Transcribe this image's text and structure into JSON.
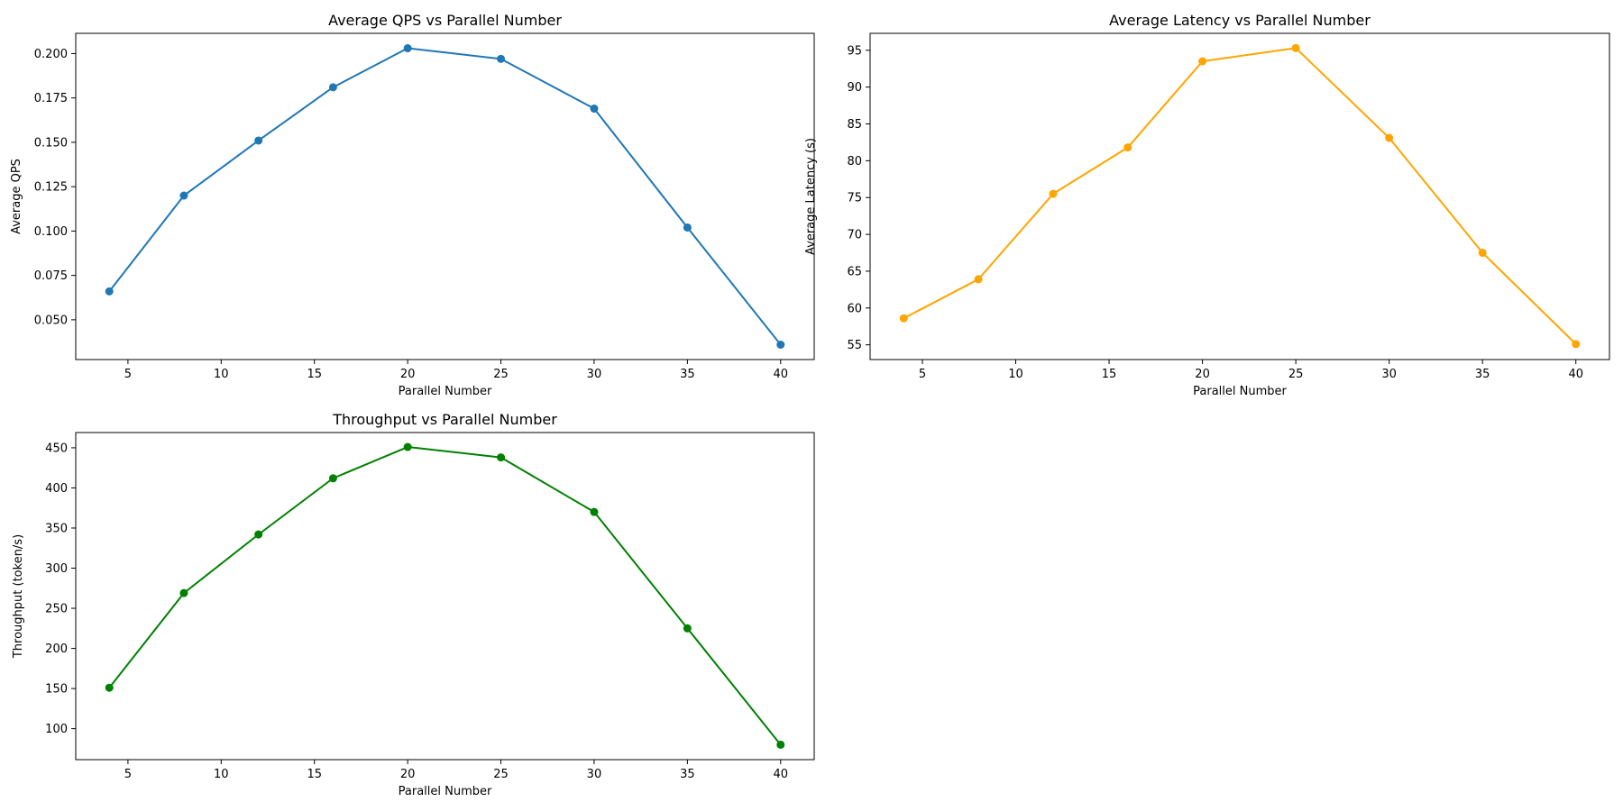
{
  "figure": {
    "background": "#ffffff"
  },
  "chart_data": [
    {
      "type": "line",
      "title": "Average QPS vs Parallel Number",
      "xlabel": "Parallel Number",
      "ylabel": "Average QPS",
      "x": [
        4,
        8,
        12,
        16,
        20,
        25,
        30,
        35,
        40
      ],
      "xlim": [
        2.2,
        41.8
      ],
      "xticks": [
        5,
        10,
        15,
        20,
        25,
        30,
        35,
        40
      ],
      "ylim": [
        0.0276,
        0.2114
      ],
      "yticks": [
        0.05,
        0.075,
        0.1,
        0.125,
        0.15,
        0.175,
        0.2
      ],
      "ytick_labels": [
        "0.050",
        "0.075",
        "0.100",
        "0.125",
        "0.150",
        "0.175",
        "0.200"
      ],
      "grid": false,
      "series": [
        {
          "color": "#1f77b4",
          "marker": "circle",
          "values": [
            0.066,
            0.12,
            0.151,
            0.181,
            0.203,
            0.197,
            0.169,
            0.102,
            0.036
          ]
        }
      ]
    },
    {
      "type": "line",
      "title": "Average Latency vs Parallel Number",
      "xlabel": "Parallel Number",
      "ylabel": "Average Latency (s)",
      "x": [
        4,
        8,
        12,
        16,
        20,
        25,
        30,
        35,
        40
      ],
      "xlim": [
        2.2,
        41.8
      ],
      "xticks": [
        5,
        10,
        15,
        20,
        25,
        30,
        35,
        40
      ],
      "ylim": [
        53.0,
        97.3
      ],
      "yticks": [
        55,
        60,
        65,
        70,
        75,
        80,
        85,
        90,
        95
      ],
      "ytick_labels": [
        "55",
        "60",
        "65",
        "70",
        "75",
        "80",
        "85",
        "90",
        "95"
      ],
      "grid": false,
      "series": [
        {
          "color": "#ffa500",
          "marker": "circle",
          "values": [
            58.6,
            63.9,
            75.5,
            81.8,
            93.5,
            95.3,
            83.1,
            67.5,
            55.1
          ]
        }
      ]
    },
    {
      "type": "line",
      "title": "Throughput vs Parallel Number",
      "xlabel": "Parallel Number",
      "ylabel": "Throughput (token/s)",
      "x": [
        4,
        8,
        12,
        16,
        20,
        25,
        30,
        35,
        40
      ],
      "xlim": [
        2.2,
        41.8
      ],
      "xticks": [
        5,
        10,
        15,
        20,
        25,
        30,
        35,
        40
      ],
      "ylim": [
        61.4,
        469.0
      ],
      "yticks": [
        100,
        150,
        200,
        250,
        300,
        350,
        400,
        450
      ],
      "ytick_labels": [
        "100",
        "150",
        "200",
        "250",
        "300",
        "350",
        "400",
        "450"
      ],
      "grid": false,
      "series": [
        {
          "color": "#008000",
          "marker": "circle",
          "values": [
            151,
            269,
            342,
            412,
            451,
            438,
            370,
            225,
            80
          ]
        }
      ]
    }
  ]
}
